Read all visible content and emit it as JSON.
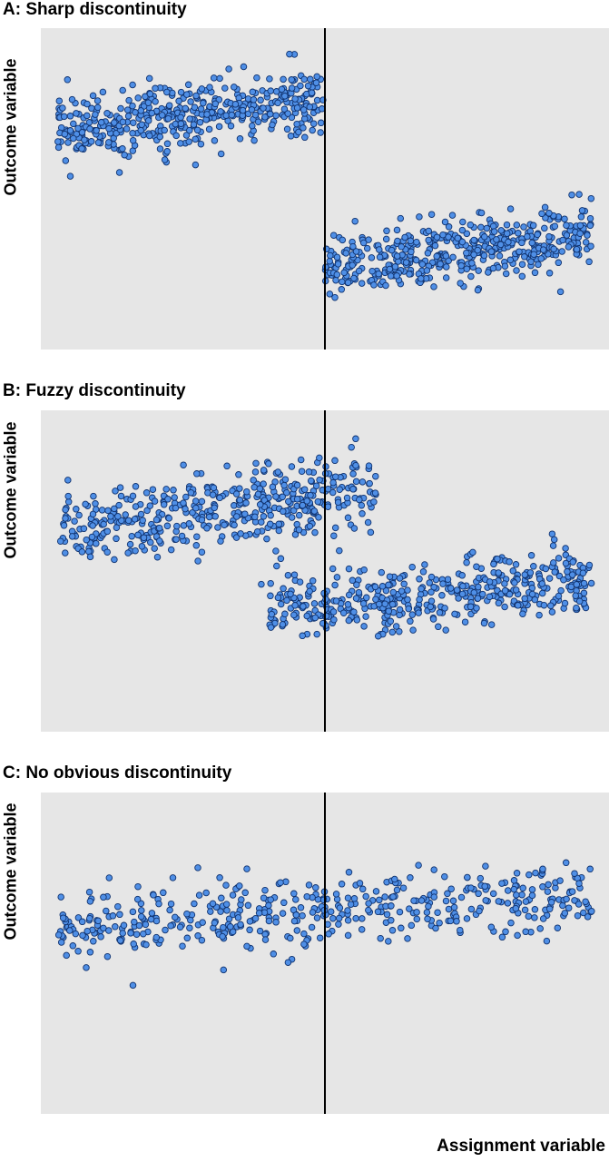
{
  "x_label": "Assignment variable",
  "colors": {
    "background": "#e6e6e6",
    "point_fill": "#4f8fe6",
    "point_stroke": "#10326e",
    "cutoff_line": "#000000"
  },
  "panels": [
    {
      "title": "A: Sharp discontinuity",
      "ylabel": "Outcome variable"
    },
    {
      "title": "B: Fuzzy discontinuity",
      "ylabel": "Outcome variable"
    },
    {
      "title": "C: No obvious discontinuity",
      "ylabel": "Outcome variable"
    }
  ],
  "chart_data": [
    {
      "type": "scatter",
      "title": "A: Sharp discontinuity",
      "xlabel": "Assignment variable",
      "ylabel": "Outcome variable",
      "cutoff": 0.5,
      "xlim": [
        0,
        1
      ],
      "ylim": [
        0,
        1
      ],
      "grid": false,
      "n_points_per_side": 450,
      "groups": [
        {
          "x_range": [
            0.03,
            0.5
          ],
          "y_start": 0.68,
          "y_end": 0.78,
          "spread": 0.055
        },
        {
          "x_range": [
            0.5,
            0.97
          ],
          "y_start": 0.25,
          "y_end": 0.36,
          "spread": 0.05
        }
      ]
    },
    {
      "type": "scatter",
      "title": "B: Fuzzy discontinuity",
      "xlabel": "Assignment variable",
      "ylabel": "Outcome variable",
      "cutoff": 0.5,
      "xlim": [
        0,
        1
      ],
      "ylim": [
        0,
        1
      ],
      "grid": false,
      "n_points_per_side": 450,
      "groups": [
        {
          "x_range": [
            0.03,
            0.59
          ],
          "y_start": 0.62,
          "y_end": 0.75,
          "spread": 0.055
        },
        {
          "x_range": [
            0.4,
            0.97
          ],
          "y_start": 0.38,
          "y_end": 0.47,
          "spread": 0.05
        }
      ]
    },
    {
      "type": "scatter",
      "title": "C: No obvious discontinuity",
      "xlabel": "Assignment variable",
      "ylabel": "Outcome variable",
      "cutoff": 0.5,
      "xlim": [
        0,
        1
      ],
      "ylim": [
        0,
        1
      ],
      "grid": false,
      "n_points_per_side": 450,
      "groups": [
        {
          "x_range": [
            0.03,
            0.97
          ],
          "y_start": 0.58,
          "y_end": 0.68,
          "spread": 0.055
        }
      ]
    }
  ]
}
